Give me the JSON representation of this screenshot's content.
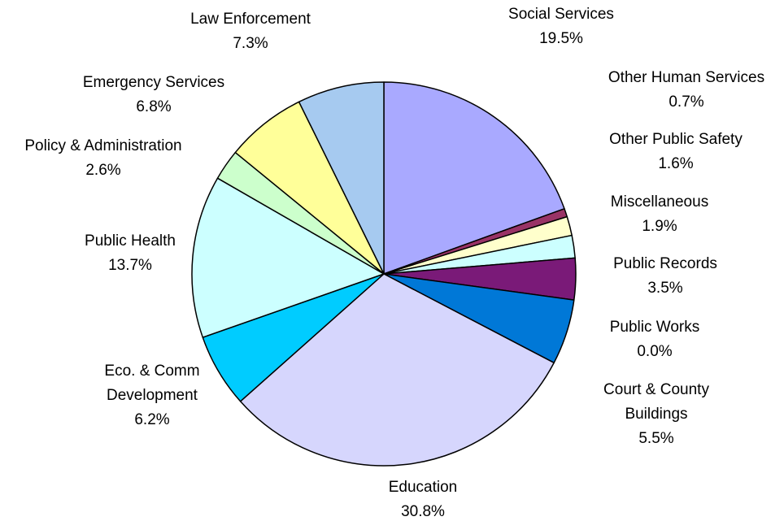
{
  "chart_data": {
    "type": "pie",
    "start": "top",
    "direction": "clockwise",
    "slices": [
      {
        "label_lines": [
          "Social Services"
        ],
        "value_label": "19.5%",
        "value": 19.5,
        "color": "#a9a9ff"
      },
      {
        "label_lines": [
          "Other Human Services"
        ],
        "value_label": "0.7%",
        "value": 0.7,
        "color": "#993366"
      },
      {
        "label_lines": [
          "Other Public Safety"
        ],
        "value_label": "1.6%",
        "value": 1.6,
        "color": "#ffffcc"
      },
      {
        "label_lines": [
          "Miscellaneous"
        ],
        "value_label": "1.9%",
        "value": 1.9,
        "color": "#ccffff"
      },
      {
        "label_lines": [
          "Public Records"
        ],
        "value_label": "3.5%",
        "value": 3.5,
        "color": "#7a1a78"
      },
      {
        "label_lines": [
          "Public Works"
        ],
        "value_label": "0.0%",
        "value": 0.0,
        "color": "#ff8080"
      },
      {
        "label_lines": [
          "Court & County",
          "Buildings"
        ],
        "value_label": "5.5%",
        "value": 5.5,
        "color": "#0078d7"
      },
      {
        "label_lines": [
          "Education"
        ],
        "value_label": "30.8%",
        "value": 30.8,
        "color": "#d6d6fd"
      },
      {
        "label_lines": [
          "Eco. & Comm",
          "Development"
        ],
        "value_label": "6.2%",
        "value": 6.2,
        "color": "#00ccff"
      },
      {
        "label_lines": [
          "Public Health"
        ],
        "value_label": "13.7%",
        "value": 13.7,
        "color": "#ccffff"
      },
      {
        "label_lines": [
          "Policy & Administration"
        ],
        "value_label": "2.6%",
        "value": 2.6,
        "color": "#ccffcc"
      },
      {
        "label_lines": [
          "Emergency Services"
        ],
        "value_label": "6.8%",
        "value": 6.8,
        "color": "#ffff99"
      },
      {
        "label_lines": [
          "Law Enforcement"
        ],
        "value_label": "7.3%",
        "value": 7.3,
        "color": "#a6caf0"
      }
    ]
  }
}
